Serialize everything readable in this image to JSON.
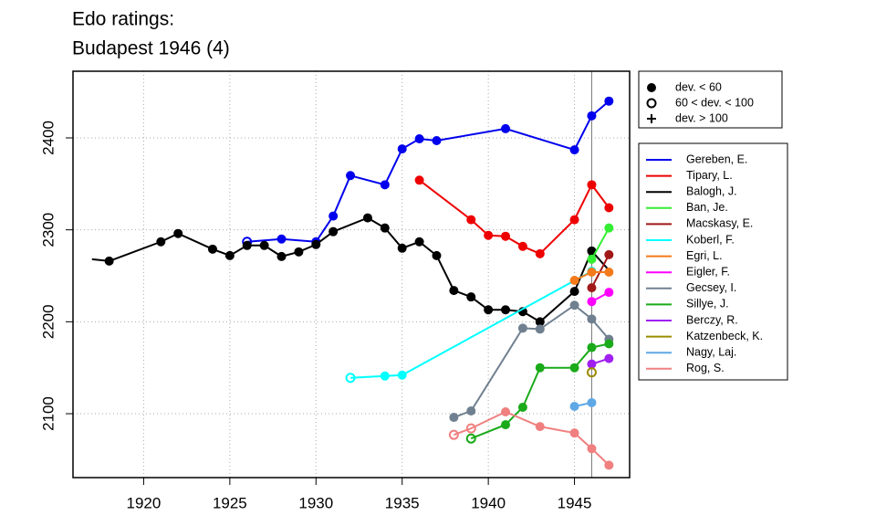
{
  "chart_data": {
    "type": "line",
    "title": "Edo ratings:",
    "subtitle": "Budapest 1946 (4)",
    "xlim": [
      1915.9,
      1948.2
    ],
    "ylim": [
      2030.5,
      2472.5
    ],
    "xticks": [
      1920,
      1925,
      1930,
      1935,
      1940,
      1945
    ],
    "yticks": [
      2100,
      2200,
      2300,
      2400
    ],
    "grid": true,
    "vline": 1946,
    "marker_legend": [
      {
        "symbol": "filled",
        "label": "dev. < 60"
      },
      {
        "symbol": "open",
        "label": "60 < dev. < 100"
      },
      {
        "symbol": "plus",
        "label": "dev. > 100"
      }
    ],
    "series": [
      {
        "name": "Gereben, E.",
        "color": "#0000ee",
        "x": [
          1926,
          1928,
          1930,
          1931,
          1932,
          1934,
          1935,
          1936,
          1937,
          1941,
          1945,
          1946,
          1947
        ],
        "values": [
          2287,
          2290,
          2287,
          2315,
          2359,
          2349,
          2388,
          2399,
          2397,
          2410,
          2387,
          2424,
          2440
        ],
        "markers": [
          "open",
          "filled",
          "filled",
          "filled",
          "filled",
          "filled",
          "filled",
          "filled",
          "filled",
          "filled",
          "filled",
          "filled",
          "filled"
        ]
      },
      {
        "name": "Tipary, L.",
        "color": "#ee0000",
        "x": [
          1936,
          1939,
          1940,
          1941,
          1942,
          1943,
          1945,
          1946,
          1947
        ],
        "values": [
          2354,
          2311,
          2294,
          2293,
          2282,
          2274,
          2311,
          2349,
          2324
        ],
        "markers": [
          "filled",
          "filled",
          "filled",
          "filled",
          "filled",
          "filled",
          "filled",
          "filled",
          "filled"
        ]
      },
      {
        "name": "Balogh, J.",
        "color": "#000000",
        "x": [
          1917,
          1918,
          1921,
          1922,
          1924,
          1925,
          1926,
          1927,
          1928,
          1929,
          1930,
          1931,
          1933,
          1934,
          1935,
          1936,
          1937,
          1938,
          1939,
          1940,
          1941,
          1942,
          1943,
          1945,
          1946,
          1947
        ],
        "values": [
          2268,
          2266,
          2287,
          2296,
          2279,
          2272,
          2283,
          2283,
          2271,
          2276,
          2284,
          2298,
          2313,
          2302,
          2280,
          2287,
          2272,
          2234,
          2227,
          2213,
          2213,
          2211,
          2200,
          2233,
          2277,
          2256
        ],
        "markers": [
          "none",
          "filled",
          "filled",
          "filled",
          "filled",
          "filled",
          "filled",
          "filled",
          "filled",
          "filled",
          "filled",
          "filled",
          "filled",
          "filled",
          "filled",
          "filled",
          "filled",
          "filled",
          "filled",
          "filled",
          "filled",
          "filled",
          "filled",
          "filled",
          "filled",
          "none"
        ]
      },
      {
        "name": "Ban, Je.",
        "color": "#33ee33",
        "x": [
          1946,
          1947
        ],
        "values": [
          2268,
          2302
        ],
        "markers": [
          "filled",
          "filled"
        ]
      },
      {
        "name": "Macskasy, E.",
        "color": "#a01818",
        "x": [
          1946,
          1947
        ],
        "values": [
          2237,
          2273
        ],
        "markers": [
          "filled",
          "filled"
        ]
      },
      {
        "name": "Koberl, F.",
        "color": "#00ffff",
        "x": [
          1932,
          1934,
          1935,
          1946
        ],
        "values": [
          2139,
          2141,
          2142,
          2255
        ],
        "markers": [
          "open",
          "filled",
          "filled",
          "filled"
        ]
      },
      {
        "name": "Egri, L.",
        "color": "#f47a1a",
        "x": [
          1945,
          1946,
          1947
        ],
        "values": [
          2245,
          2254,
          2254
        ],
        "markers": [
          "filled",
          "filled",
          "filled"
        ]
      },
      {
        "name": "Eigler, F.",
        "color": "#ff00ff",
        "x": [
          1946,
          1947
        ],
        "values": [
          2222,
          2232
        ],
        "markers": [
          "filled",
          "filled"
        ]
      },
      {
        "name": "Gecsey, I.",
        "color": "#708090",
        "x": [
          1938,
          1939,
          1942,
          1943,
          1945,
          1946,
          1947
        ],
        "values": [
          2096,
          2103,
          2193,
          2192,
          2218,
          2203,
          2181
        ],
        "markers": [
          "filled",
          "filled",
          "filled",
          "filled",
          "filled",
          "filled",
          "filled"
        ]
      },
      {
        "name": "Sillye, J.",
        "color": "#1aaa1a",
        "x": [
          1939,
          1941,
          1942,
          1943,
          1945,
          1946,
          1947
        ],
        "values": [
          2073,
          2088,
          2107,
          2150,
          2150,
          2172,
          2176
        ],
        "markers": [
          "open",
          "filled",
          "filled",
          "filled",
          "filled",
          "filled",
          "filled"
        ]
      },
      {
        "name": "Berczy, R.",
        "color": "#a020f0",
        "x": [
          1946,
          1947
        ],
        "values": [
          2154,
          2160
        ],
        "markers": [
          "filled",
          "filled"
        ]
      },
      {
        "name": "Katzenbeck, K.",
        "color": "#9b8b00",
        "x": [
          1946
        ],
        "values": [
          2145
        ],
        "markers": [
          "open"
        ]
      },
      {
        "name": "Nagy, Laj.",
        "color": "#5fa8e6",
        "x": [
          1945,
          1946
        ],
        "values": [
          2108,
          2112
        ],
        "markers": [
          "filled",
          "filled"
        ]
      },
      {
        "name": "Rog, S.",
        "color": "#f08080",
        "x": [
          1938,
          1939,
          1941,
          1943,
          1945,
          1946,
          1947
        ],
        "values": [
          2077,
          2084,
          2102,
          2086,
          2079,
          2062,
          2044
        ],
        "markers": [
          "open",
          "open",
          "filled",
          "filled",
          "filled",
          "filled",
          "filled"
        ]
      }
    ]
  }
}
